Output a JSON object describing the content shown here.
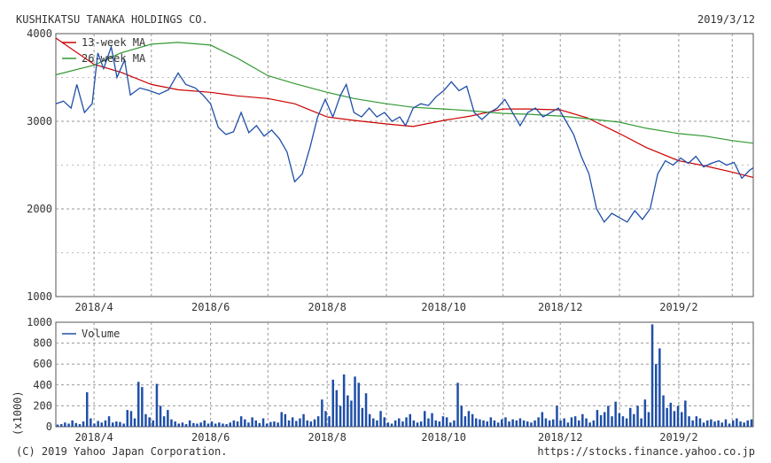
{
  "header": {
    "company": "KUSHIKATSU TANAKA HOLDINGS CO.",
    "date": "2019/3/12"
  },
  "footer": {
    "copyright": "(C) 2019 Yahoo Japan Corporation.",
    "url": "https://stocks.finance.yahoo.co.jp"
  },
  "chart_data": [
    {
      "type": "line",
      "title": "",
      "ylim": [
        1000,
        4000
      ],
      "yticks": [
        "4000",
        "3000",
        "2000",
        "1000"
      ],
      "xlim": [
        "2018-03-12",
        "2019-03-12"
      ],
      "xticks": [
        "2018/4",
        "2018/6",
        "2018/8",
        "2018/10",
        "2018/12",
        "2019/2"
      ],
      "xtick_dates": [
        "2018-04-01",
        "2018-06-01",
        "2018-08-01",
        "2018-10-01",
        "2018-12-01",
        "2019-02-01"
      ],
      "grid": true,
      "legend": "top-left",
      "series": [
        {
          "name": "13-week MA",
          "color": "#cc0000",
          "points": [
            [
              "2018-03-12",
              3950
            ],
            [
              "2018-04-01",
              3650
            ],
            [
              "2018-04-15",
              3560
            ],
            [
              "2018-05-01",
              3420
            ],
            [
              "2018-05-15",
              3360
            ],
            [
              "2018-06-01",
              3330
            ],
            [
              "2018-06-15",
              3290
            ],
            [
              "2018-07-01",
              3260
            ],
            [
              "2018-07-15",
              3200
            ],
            [
              "2018-08-01",
              3050
            ],
            [
              "2018-08-15",
              3010
            ],
            [
              "2018-09-01",
              2970
            ],
            [
              "2018-09-15",
              2940
            ],
            [
              "2018-10-01",
              3010
            ],
            [
              "2018-10-15",
              3060
            ],
            [
              "2018-11-01",
              3140
            ],
            [
              "2018-11-15",
              3140
            ],
            [
              "2018-12-01",
              3130
            ],
            [
              "2018-12-15",
              3040
            ],
            [
              "2019-01-01",
              2860
            ],
            [
              "2019-01-15",
              2700
            ],
            [
              "2019-02-01",
              2550
            ],
            [
              "2019-02-15",
              2490
            ],
            [
              "2019-03-01",
              2420
            ],
            [
              "2019-03-12",
              2360
            ]
          ]
        },
        {
          "name": "26-week MA",
          "color": "#339933",
          "points": [
            [
              "2018-03-12",
              3530
            ],
            [
              "2018-04-01",
              3640
            ],
            [
              "2018-04-15",
              3780
            ],
            [
              "2018-05-01",
              3880
            ],
            [
              "2018-05-15",
              3900
            ],
            [
              "2018-06-01",
              3870
            ],
            [
              "2018-06-15",
              3720
            ],
            [
              "2018-07-01",
              3520
            ],
            [
              "2018-07-15",
              3430
            ],
            [
              "2018-08-01",
              3330
            ],
            [
              "2018-08-15",
              3260
            ],
            [
              "2018-09-01",
              3200
            ],
            [
              "2018-09-15",
              3160
            ],
            [
              "2018-10-01",
              3140
            ],
            [
              "2018-10-15",
              3120
            ],
            [
              "2018-11-01",
              3090
            ],
            [
              "2018-11-15",
              3080
            ],
            [
              "2018-12-01",
              3060
            ],
            [
              "2018-12-15",
              3030
            ],
            [
              "2019-01-01",
              2990
            ],
            [
              "2019-01-15",
              2920
            ],
            [
              "2019-02-01",
              2860
            ],
            [
              "2019-02-15",
              2830
            ],
            [
              "2019-03-01",
              2780
            ],
            [
              "2019-03-12",
              2750
            ]
          ]
        },
        {
          "name": "",
          "color": "#1f4fa8",
          "points": [
            [
              "2018-03-12",
              3200
            ],
            [
              "2018-03-16",
              3230
            ],
            [
              "2018-03-20",
              3150
            ],
            [
              "2018-03-23",
              3420
            ],
            [
              "2018-03-27",
              3100
            ],
            [
              "2018-03-31",
              3200
            ],
            [
              "2018-04-03",
              3780
            ],
            [
              "2018-04-06",
              3600
            ],
            [
              "2018-04-10",
              3850
            ],
            [
              "2018-04-13",
              3500
            ],
            [
              "2018-04-17",
              3700
            ],
            [
              "2018-04-20",
              3300
            ],
            [
              "2018-04-25",
              3380
            ],
            [
              "2018-04-30",
              3350
            ],
            [
              "2018-05-05",
              3310
            ],
            [
              "2018-05-10",
              3360
            ],
            [
              "2018-05-15",
              3550
            ],
            [
              "2018-05-19",
              3420
            ],
            [
              "2018-05-24",
              3380
            ],
            [
              "2018-05-28",
              3300
            ],
            [
              "2018-06-01",
              3200
            ],
            [
              "2018-06-05",
              2930
            ],
            [
              "2018-06-09",
              2850
            ],
            [
              "2018-06-13",
              2880
            ],
            [
              "2018-06-17",
              3100
            ],
            [
              "2018-06-21",
              2870
            ],
            [
              "2018-06-25",
              2950
            ],
            [
              "2018-06-29",
              2830
            ],
            [
              "2018-07-03",
              2900
            ],
            [
              "2018-07-07",
              2800
            ],
            [
              "2018-07-11",
              2650
            ],
            [
              "2018-07-15",
              2310
            ],
            [
              "2018-07-19",
              2400
            ],
            [
              "2018-07-23",
              2700
            ],
            [
              "2018-07-27",
              3050
            ],
            [
              "2018-07-31",
              3250
            ],
            [
              "2018-08-04",
              3050
            ],
            [
              "2018-08-08",
              3300
            ],
            [
              "2018-08-11",
              3420
            ],
            [
              "2018-08-15",
              3100
            ],
            [
              "2018-08-19",
              3050
            ],
            [
              "2018-08-23",
              3150
            ],
            [
              "2018-08-27",
              3050
            ],
            [
              "2018-08-31",
              3100
            ],
            [
              "2018-09-04",
              3000
            ],
            [
              "2018-09-08",
              3050
            ],
            [
              "2018-09-11",
              2950
            ],
            [
              "2018-09-15",
              3150
            ],
            [
              "2018-09-19",
              3200
            ],
            [
              "2018-09-23",
              3180
            ],
            [
              "2018-09-27",
              3280
            ],
            [
              "2018-10-01",
              3350
            ],
            [
              "2018-10-05",
              3450
            ],
            [
              "2018-10-09",
              3350
            ],
            [
              "2018-10-13",
              3400
            ],
            [
              "2018-10-17",
              3100
            ],
            [
              "2018-10-21",
              3020
            ],
            [
              "2018-10-25",
              3100
            ],
            [
              "2018-10-29",
              3150
            ],
            [
              "2018-11-02",
              3250
            ],
            [
              "2018-11-06",
              3100
            ],
            [
              "2018-11-10",
              2950
            ],
            [
              "2018-11-14",
              3100
            ],
            [
              "2018-11-18",
              3150
            ],
            [
              "2018-11-22",
              3050
            ],
            [
              "2018-11-26",
              3100
            ],
            [
              "2018-11-30",
              3150
            ],
            [
              "2018-12-04",
              3000
            ],
            [
              "2018-12-08",
              2850
            ],
            [
              "2018-12-12",
              2600
            ],
            [
              "2018-12-16",
              2400
            ],
            [
              "2018-12-20",
              2000
            ],
            [
              "2018-12-24",
              1850
            ],
            [
              "2018-12-28",
              1950
            ],
            [
              "2019-01-01",
              1900
            ],
            [
              "2019-01-05",
              1850
            ],
            [
              "2019-01-09",
              1980
            ],
            [
              "2019-01-13",
              1880
            ],
            [
              "2019-01-17",
              2000
            ],
            [
              "2019-01-21",
              2400
            ],
            [
              "2019-01-25",
              2550
            ],
            [
              "2019-01-29",
              2500
            ],
            [
              "2019-02-02",
              2580
            ],
            [
              "2019-02-06",
              2520
            ],
            [
              "2019-02-10",
              2600
            ],
            [
              "2019-02-14",
              2480
            ],
            [
              "2019-02-18",
              2520
            ],
            [
              "2019-02-22",
              2550
            ],
            [
              "2019-02-26",
              2500
            ],
            [
              "2019-03-02",
              2530
            ],
            [
              "2019-03-06",
              2350
            ],
            [
              "2019-03-10",
              2440
            ],
            [
              "2019-03-12",
              2470
            ]
          ]
        }
      ]
    },
    {
      "type": "bar",
      "title": "",
      "ylabel": "(x1000)",
      "ylim": [
        0,
        1000
      ],
      "yticks": [
        "1000",
        "800",
        "600",
        "400",
        "200",
        "0"
      ],
      "xticks": [
        "2018/4",
        "2018/6",
        "2018/8",
        "2018/10",
        "2018/12",
        "2019/2"
      ],
      "grid": true,
      "legend": "top-left",
      "series": [
        {
          "name": "Volume",
          "color": "#1f4fa8",
          "values": [
            20,
            25,
            40,
            30,
            60,
            35,
            25,
            50,
            330,
            80,
            30,
            55,
            40,
            60,
            100,
            40,
            50,
            45,
            30,
            160,
            150,
            80,
            430,
            380,
            120,
            90,
            60,
            410,
            200,
            100,
            160,
            70,
            50,
            30,
            40,
            25,
            60,
            35,
            30,
            40,
            60,
            30,
            50,
            30,
            40,
            30,
            25,
            40,
            60,
            50,
            100,
            70,
            40,
            90,
            60,
            35,
            80,
            30,
            45,
            50,
            40,
            140,
            120,
            60,
            90,
            55,
            80,
            120,
            60,
            50,
            70,
            100,
            260,
            150,
            100,
            450,
            350,
            200,
            500,
            300,
            250,
            480,
            420,
            180,
            320,
            120,
            80,
            60,
            150,
            90,
            40,
            30,
            60,
            80,
            50,
            90,
            120,
            60,
            40,
            50,
            150,
            80,
            130,
            60,
            50,
            100,
            90,
            40,
            60,
            420,
            200,
            100,
            150,
            120,
            80,
            70,
            60,
            50,
            90,
            60,
            40,
            70,
            90,
            50,
            70,
            60,
            80,
            60,
            50,
            40,
            60,
            90,
            140,
            80,
            60,
            70,
            200,
            60,
            80,
            40,
            90,
            100,
            60,
            120,
            80,
            40,
            60,
            160,
            110,
            140,
            200,
            100,
            240,
            130,
            100,
            80,
            180,
            120,
            200,
            80,
            260,
            140,
            980,
            600,
            750,
            300,
            180,
            230,
            150,
            200,
            140,
            250,
            100,
            60,
            100,
            80,
            40,
            60,
            70,
            50,
            60,
            40,
            70,
            30,
            60,
            80,
            50,
            40,
            60,
            70
          ]
        }
      ]
    }
  ]
}
